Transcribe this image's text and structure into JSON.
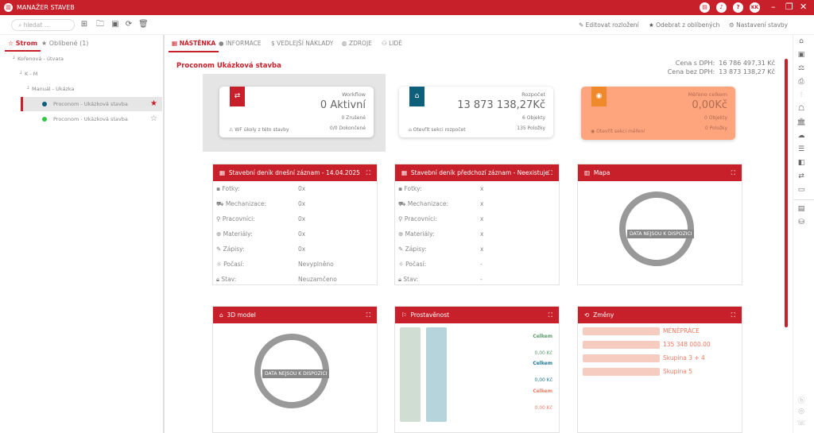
{
  "app": {
    "title": "MANAŽER STAVEB",
    "user_initials": "KK",
    "header_icons": [
      "document-icon",
      "notification-icon",
      "help-icon"
    ]
  },
  "toolbar": {
    "search_placeholder": "hledat ...",
    "actions": [
      "Editovat rozložení",
      "Odebrat z oblíbených",
      "Nastavení stavby"
    ]
  },
  "left": {
    "tabs": [
      "Strom",
      "Oblíbené (1)"
    ],
    "tree": [
      {
        "label": "Kořenová - útvara"
      },
      {
        "label": "K - M"
      },
      {
        "label": "Manuál - Ukázka"
      },
      {
        "label": "Proconom  -  Ukázková stavba",
        "dot": "#0e5f7a",
        "fav": true,
        "selected": true
      },
      {
        "label": "Proconom  -  Ukázková stavba",
        "dot": "#2ecc40",
        "fav": false
      }
    ]
  },
  "main": {
    "tabs": [
      "NÁSTĚNKA",
      "INFORMACE",
      "VEDLEJŠÍ NÁKLADY",
      "ZDROJE",
      "LIDÉ"
    ],
    "title": "Proconom Ukázková stavba",
    "price": {
      "with_vat_label": "Cena s DPH:",
      "with_vat": "16 786 497,31 Kč",
      "without_vat_label": "Cena bez DPH:",
      "without_vat": "13 873 138,27 Kč"
    },
    "cards": {
      "workflow": {
        "title": "Workflow",
        "value": "0 Aktivní",
        "l1": "0 Zrušené",
        "l2": "0/0 Dokončené",
        "link": "WF úkoly z této stavby",
        "color": "#c8202a"
      },
      "budget": {
        "title": "Rozpočet",
        "value": "13 873 138,27Kč",
        "l1": "6 Objekty",
        "l2": "135 Položky",
        "link": "Otevřít sekci rozpočet",
        "color": "#0e5f7a"
      },
      "measured": {
        "title": "Měřeno celkem",
        "value": "0,00Kč",
        "l1": "0 Objekty",
        "l2": "0 Položky",
        "link": "Otevřít sekci měření",
        "color": "#f0892a"
      }
    },
    "diary_today": {
      "title": "Stavební deník dnešní záznam - 14.04.2025",
      "rows": [
        {
          "label": "Fotky:",
          "value": "0x"
        },
        {
          "label": "Mechanizace:",
          "value": "0x"
        },
        {
          "label": "Pracovníci:",
          "value": "0x"
        },
        {
          "label": "Materiály:",
          "value": "0x"
        },
        {
          "label": "Zápisy:",
          "value": "0x"
        },
        {
          "label": "Počasí:",
          "value": "Nevyplněno"
        },
        {
          "label": "Stav:",
          "value": "Neuzamčeno"
        }
      ]
    },
    "diary_prev": {
      "title": "Stavební deník předchozí záznam - Neexistuje",
      "rows": [
        {
          "label": "Fotky:",
          "value": "x"
        },
        {
          "label": "Mechanizace:",
          "value": "x"
        },
        {
          "label": "Pracovníci:",
          "value": "x"
        },
        {
          "label": "Materiály:",
          "value": "x"
        },
        {
          "label": "Zápisy:",
          "value": "x"
        },
        {
          "label": "Počasí:",
          "value": "-"
        },
        {
          "label": "Stav:",
          "value": "-"
        }
      ]
    },
    "map": {
      "title": "Mapa",
      "no_data": "DATA NEJSOU K DISPOZICI"
    },
    "model": {
      "title": "3D model",
      "no_data": "DATA NEJSOU K DISPOZICI"
    },
    "progress": {
      "title": "Prostavěnost",
      "items": [
        {
          "label": "Celkem",
          "value": "0,00 Kč",
          "color": "#5a9a6a"
        },
        {
          "label": "Celkem",
          "value": "0,00 Kč",
          "color": "#1f7a93"
        },
        {
          "label": "Celkem",
          "value": "0,00 Kč",
          "color": "#ef7b63"
        }
      ]
    },
    "changes": {
      "title": "Změny",
      "items": [
        "MÉNĚPRÁCE",
        "135 348 000.00",
        "Skupina 3 + 4",
        "Skupina 5"
      ]
    }
  }
}
